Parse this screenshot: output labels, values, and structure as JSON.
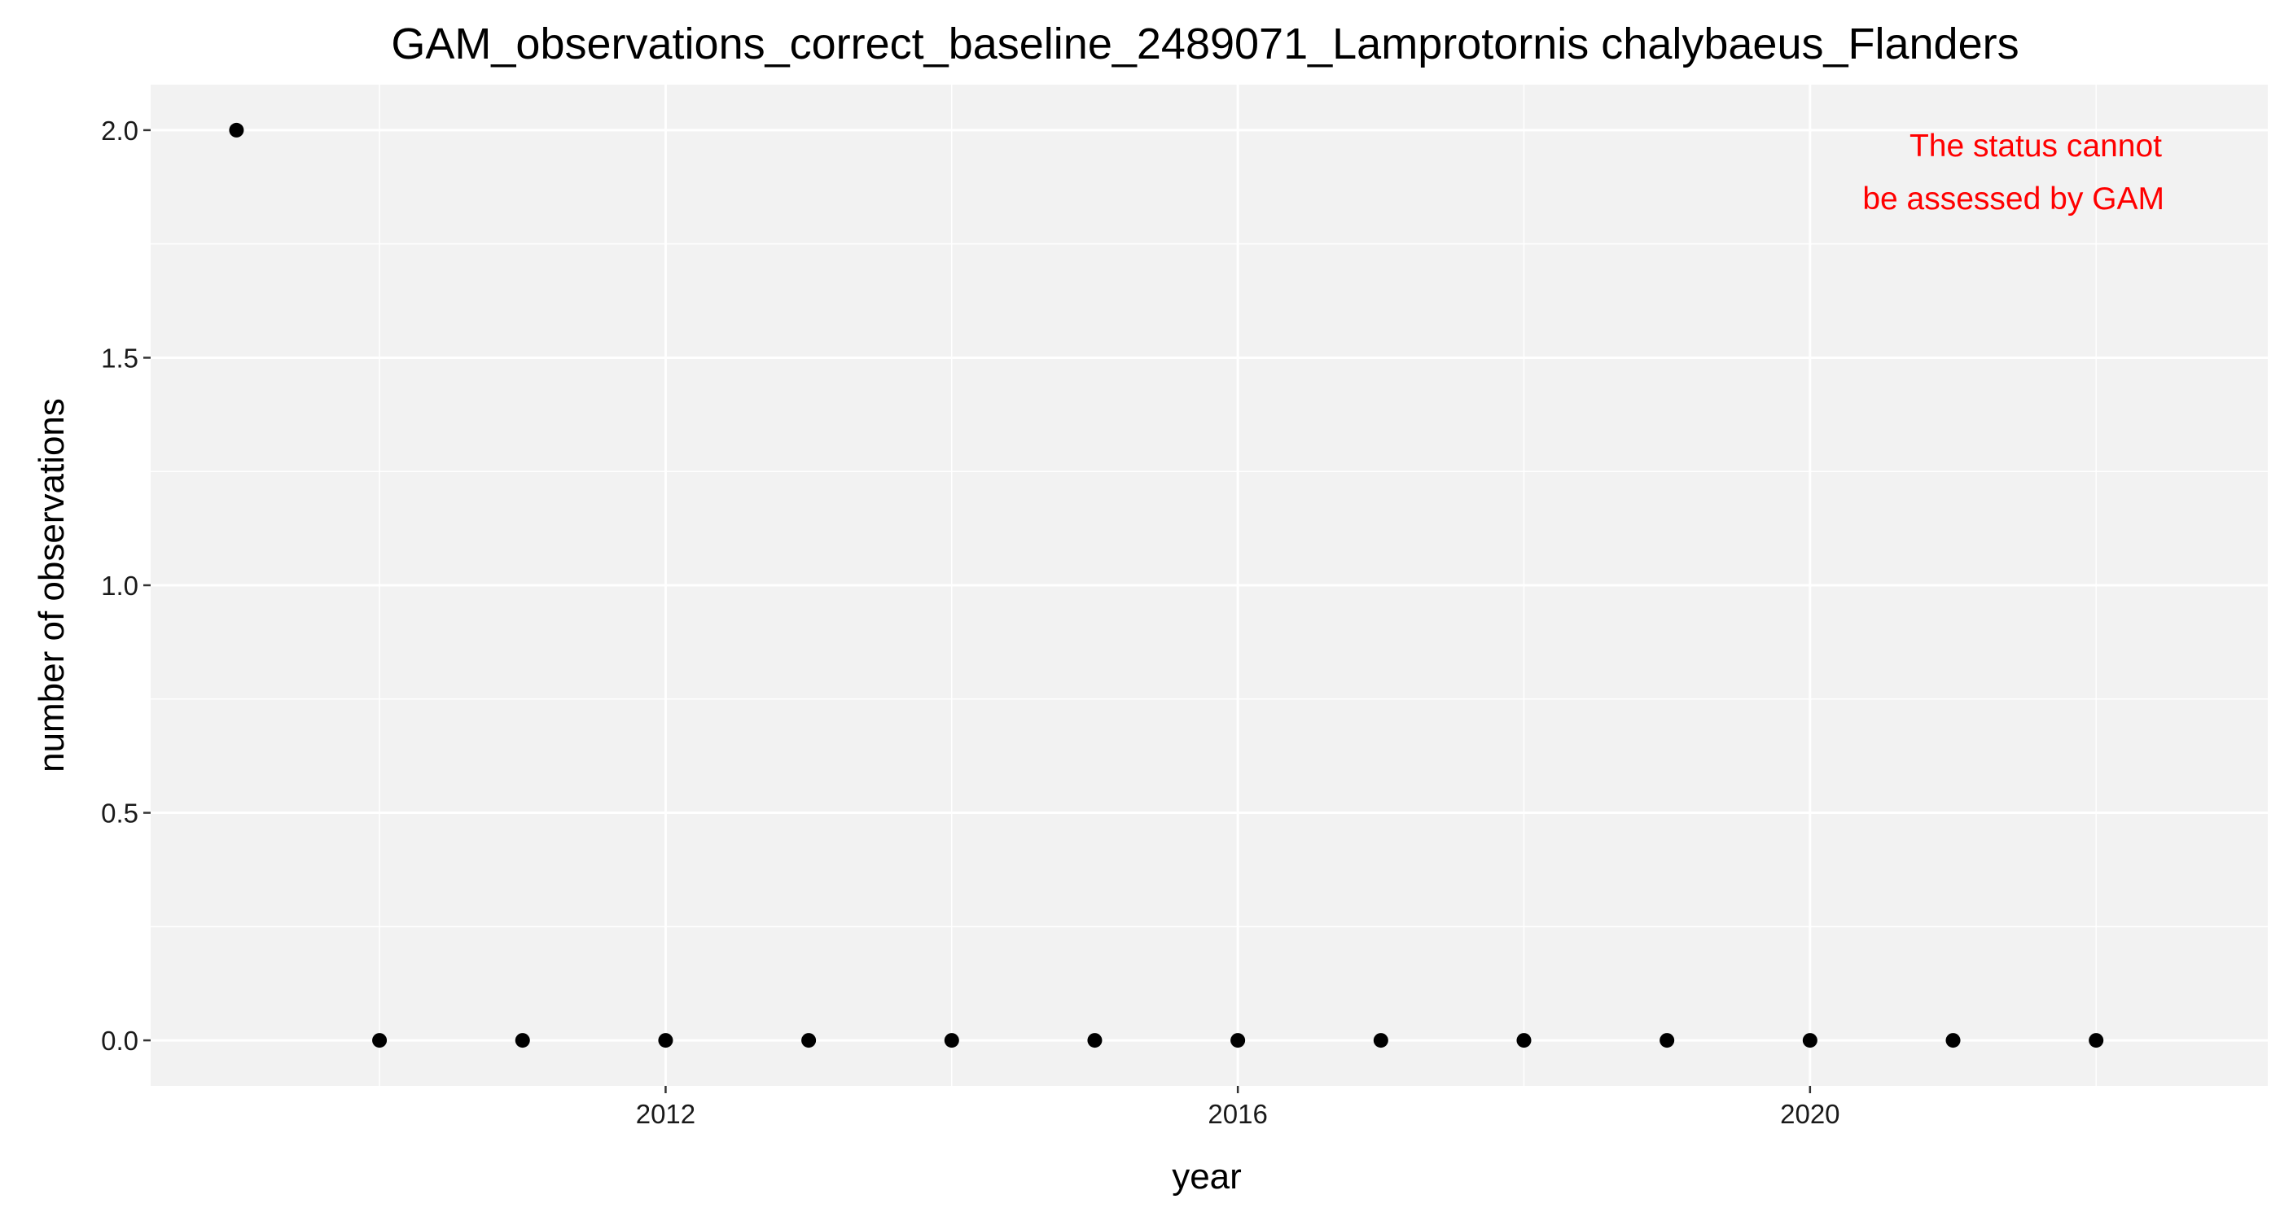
{
  "chart_data": {
    "type": "scatter",
    "title": "GAM_observations_correct_baseline_2489071_Lamprotornis chalybaeus_Flanders",
    "xlabel": "year",
    "ylabel": "number of observations",
    "x": [
      2009,
      2010,
      2011,
      2012,
      2013,
      2014,
      2015,
      2016,
      2017,
      2018,
      2019,
      2020,
      2021,
      2022
    ],
    "y": [
      2,
      0,
      0,
      0,
      0,
      0,
      0,
      0,
      0,
      0,
      0,
      0,
      0,
      0
    ],
    "xlim": [
      2008.4,
      2023.2
    ],
    "ylim": [
      -0.1,
      2.1
    ],
    "x_ticks": [
      2012,
      2016,
      2020
    ],
    "x_tick_labels": [
      "2012",
      "2016",
      "2020"
    ],
    "y_ticks": [
      0,
      0.5,
      1,
      1.5,
      2
    ],
    "y_tick_labels": [
      "0.0",
      "0.5",
      "1.0",
      "1.5",
      "2.0"
    ],
    "grid": true,
    "annotation": {
      "lines": [
        "The status cannot",
        "be assessed by GAM"
      ],
      "position": "top-right",
      "color": "#ff0000"
    },
    "colors": {
      "panel_background": "#f2f2f2",
      "grid": "#ffffff",
      "point": "#000000"
    }
  }
}
